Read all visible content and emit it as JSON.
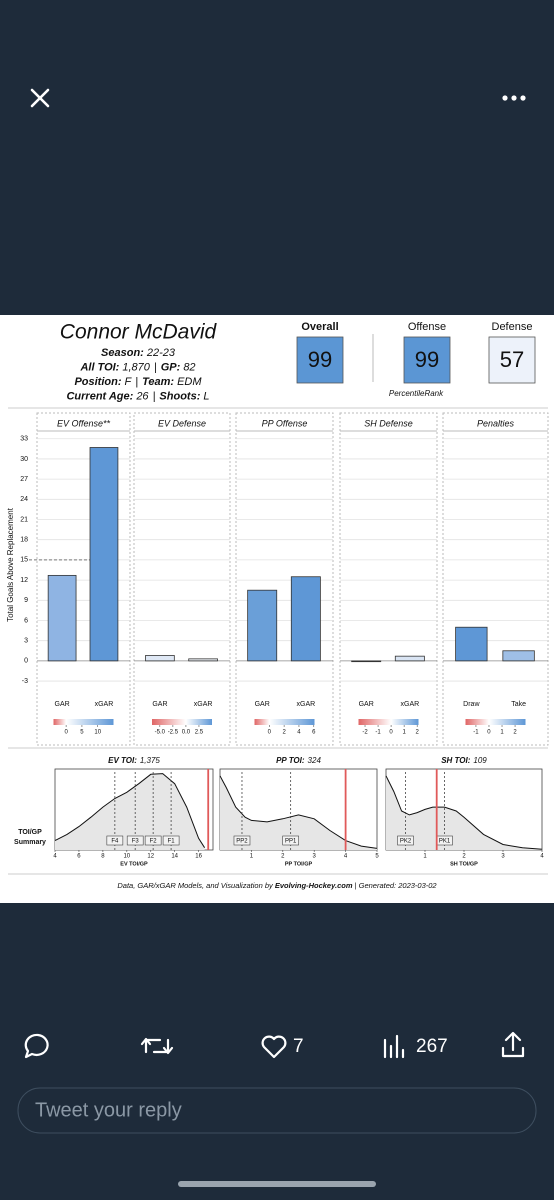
{
  "ui": {
    "likes": "7",
    "views": "267",
    "reply_placeholder": "Tweet your reply"
  },
  "card": {
    "name": "Connor McDavid",
    "separator": "|",
    "info_lines": [
      [
        {
          "label": "Season:",
          "value": "22-23"
        }
      ],
      [
        {
          "label": "All TOI:",
          "value": "1,870"
        },
        {
          "label": "GP:",
          "value": "82"
        }
      ],
      [
        {
          "label": "Position:",
          "value": "F"
        },
        {
          "label": "Team:",
          "value": "EDM"
        }
      ],
      [
        {
          "label": "Current Age:",
          "value": "26"
        },
        {
          "label": "Shoots:",
          "value": "L"
        }
      ]
    ],
    "percentiles": [
      {
        "label": "Overall",
        "value": "99",
        "color": "#5b96d4"
      },
      {
        "label": "Offense",
        "value": "99",
        "color": "#5b96d4"
      },
      {
        "label": "Defense",
        "value": "57",
        "color": "#edf2fa"
      }
    ],
    "percentile_note": "PercentileRank",
    "toi_label": [
      "TOI/GP",
      "Summary"
    ],
    "footer": {
      "prefix": "Data, GAR/xGAR Models, and Visualization by ",
      "source": "Evolving-Hockey.com",
      "suffix": " | Generated: 2023-03-02"
    }
  },
  "chart_data": [
    {
      "type": "bar",
      "title": "EV Offense**",
      "ylabel": "Total Goals Above Replacement",
      "show_ytick_labels": true,
      "categories": [
        "GAR",
        "xGAR"
      ],
      "values": [
        12.7,
        31.7
      ],
      "colors": [
        "#8fb4e3",
        "#5e97d6"
      ],
      "ylim": [
        -7,
        34
      ],
      "yticks": [
        -3,
        0,
        3,
        6,
        9,
        12,
        15,
        18,
        21,
        24,
        27,
        30,
        33
      ],
      "reference_value": 15,
      "color_scale": {
        "lim": [
          -4,
          15
        ],
        "ticks": [
          0,
          5,
          10
        ],
        "colors": [
          "#e06666",
          "#ffffff",
          "#5e97d6"
        ]
      }
    },
    {
      "type": "bar",
      "title": "EV Defense",
      "show_ytick_labels": false,
      "categories": [
        "GAR",
        "xGAR"
      ],
      "values": [
        0.8,
        0.3
      ],
      "colors": [
        "#dfe8f5",
        "#f0f4fa"
      ],
      "ylim": [
        -7,
        34
      ],
      "yticks": [
        -3,
        0,
        3,
        6,
        9,
        12,
        15,
        18,
        21,
        24,
        27,
        30,
        33
      ],
      "color_scale": {
        "lim": [
          -6.5,
          5
        ],
        "ticks": [
          {
            "value": -5,
            "label": "-5.0"
          },
          -2.5,
          {
            "value": 0,
            "label": "0.0"
          },
          2.5
        ],
        "colors": [
          "#e06666",
          "#ffffff",
          "#5e97d6"
        ]
      }
    },
    {
      "type": "bar",
      "title": "PP Offense",
      "show_ytick_labels": false,
      "categories": [
        "GAR",
        "xGAR"
      ],
      "values": [
        10.5,
        12.5
      ],
      "colors": [
        "#6a9fd8",
        "#5e97d6"
      ],
      "ylim": [
        -7,
        34
      ],
      "yticks": [
        -3,
        0,
        3,
        6,
        9,
        12,
        15,
        18,
        21,
        24,
        27,
        30,
        33
      ],
      "color_scale": {
        "lim": [
          -2,
          6.1
        ],
        "ticks": [
          0,
          2,
          4,
          6
        ],
        "colors": [
          "#e06666",
          "#ffffff",
          "#5e97d6"
        ]
      }
    },
    {
      "type": "bar",
      "title": "SH Defense",
      "show_ytick_labels": false,
      "categories": [
        "GAR",
        "xGAR"
      ],
      "values": [
        -0.1,
        0.7
      ],
      "colors": [
        "#f6eeee",
        "#d9e4f3"
      ],
      "ylim": [
        -7,
        34
      ],
      "yticks": [
        -3,
        0,
        3,
        6,
        9,
        12,
        15,
        18,
        21,
        24,
        27,
        30,
        33
      ],
      "color_scale": {
        "lim": [
          -2.5,
          2.1
        ],
        "ticks": [
          -2,
          -1,
          0,
          1,
          2
        ],
        "colors": [
          "#e06666",
          "#ffffff",
          "#5e97d6"
        ]
      }
    },
    {
      "type": "bar",
      "title": "Penalties",
      "show_ytick_labels": false,
      "categories": [
        "Draw",
        "Take"
      ],
      "values": [
        5.0,
        1.5
      ],
      "colors": [
        "#5e97d6",
        "#9fbfe6"
      ],
      "ylim": [
        -7,
        34
      ],
      "yticks": [
        -3,
        0,
        3,
        6,
        9,
        12,
        15,
        18,
        21,
        24,
        27,
        30,
        33
      ],
      "color_scale": {
        "lim": [
          -1.8,
          2.8
        ],
        "ticks": [
          -1,
          0,
          1,
          2
        ],
        "colors": [
          "#e06666",
          "#ffffff",
          "#5e97d6"
        ]
      }
    },
    {
      "type": "density",
      "title": "EV TOI:",
      "total": "1,375",
      "xlabel": "EV TOI/GP",
      "xlim": [
        4,
        17.2
      ],
      "xticks": [
        4,
        6,
        8,
        10,
        12,
        14,
        16
      ],
      "ylim": [
        0,
        1
      ],
      "x": [
        4,
        5,
        6,
        7,
        8,
        9,
        10,
        11,
        12,
        13,
        14,
        15,
        16,
        16.5
      ],
      "values": [
        0.12,
        0.2,
        0.3,
        0.42,
        0.55,
        0.66,
        0.74,
        0.85,
        0.97,
        0.98,
        0.85,
        0.55,
        0.15,
        0.03
      ],
      "fill": "#e6e6e6",
      "markers": [
        {
          "label": "F4",
          "value": 9.0
        },
        {
          "label": "F3",
          "value": 10.7
        },
        {
          "label": "F2",
          "value": 12.2
        },
        {
          "label": "F1",
          "value": 13.7
        }
      ],
      "player_value": 16.8,
      "player_color": "#e05a5a"
    },
    {
      "type": "density",
      "title": "PP TOI:",
      "total": "324",
      "xlabel": "PP TOI/GP",
      "xlim": [
        0,
        5
      ],
      "xticks": [
        1,
        2,
        3,
        4,
        5
      ],
      "ylim": [
        0,
        1
      ],
      "x": [
        0,
        0.2,
        0.5,
        0.8,
        1,
        1.5,
        2,
        2.5,
        3,
        3.5,
        4,
        4.5,
        5
      ],
      "values": [
        0.95,
        0.8,
        0.55,
        0.42,
        0.38,
        0.36,
        0.4,
        0.45,
        0.4,
        0.25,
        0.12,
        0.05,
        0.02
      ],
      "fill": "#e6e6e6",
      "markers": [
        {
          "label": "PP2",
          "value": 0.7
        },
        {
          "label": "PP1",
          "value": 2.25
        }
      ],
      "player_value": 4.0,
      "player_color": "#e05a5a"
    },
    {
      "type": "density",
      "title": "SH TOI:",
      "total": "109",
      "xlabel": "SH TOI/GP",
      "xlim": [
        0,
        4
      ],
      "xticks": [
        1,
        2,
        3,
        4
      ],
      "ylim": [
        0,
        1
      ],
      "x": [
        0,
        0.2,
        0.4,
        0.6,
        0.8,
        1,
        1.2,
        1.5,
        1.8,
        2,
        2.5,
        3,
        3.5,
        4
      ],
      "values": [
        0.95,
        0.75,
        0.5,
        0.45,
        0.48,
        0.52,
        0.55,
        0.55,
        0.5,
        0.42,
        0.2,
        0.07,
        0.03,
        0.01
      ],
      "fill": "#e6e6e6",
      "markers": [
        {
          "label": "PK2",
          "value": 0.5
        },
        {
          "label": "PK1",
          "value": 1.5
        }
      ],
      "player_value": 1.3,
      "player_color": "#e05a5a"
    }
  ]
}
